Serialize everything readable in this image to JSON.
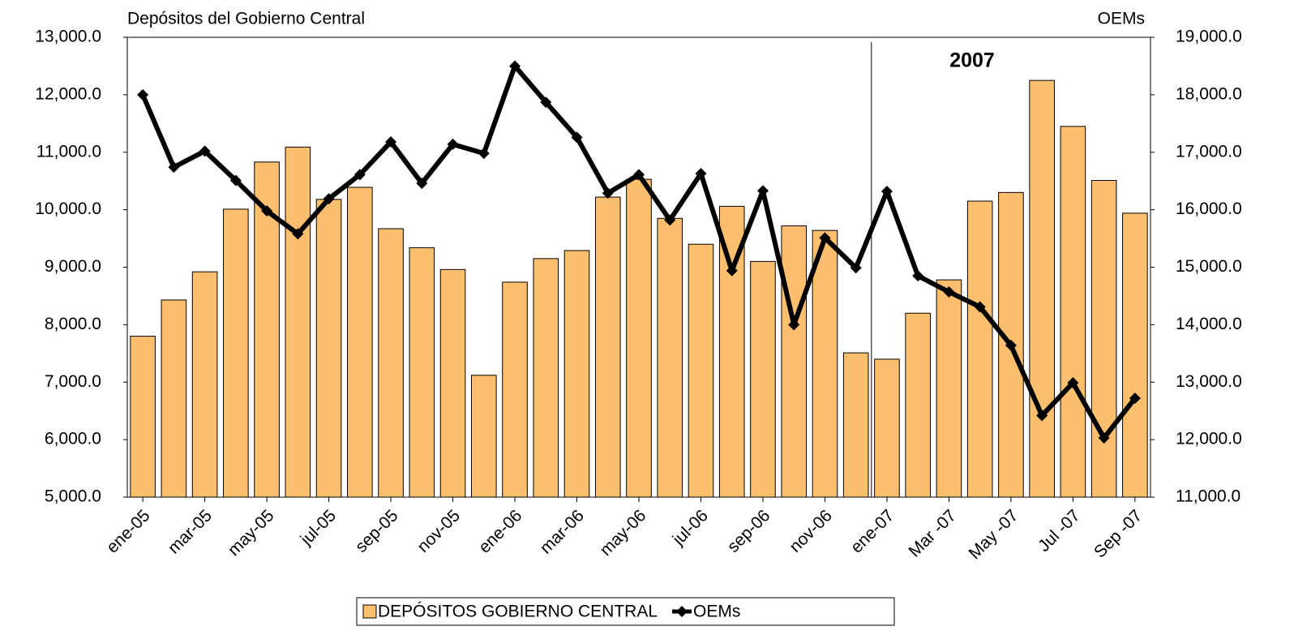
{
  "chart_data": {
    "type": "combo",
    "y_label": "Depósitos del Gobierno Central",
    "y2_label": "OEMs",
    "annotation": "2007",
    "annotation_color": "#ff0000",
    "categories": [
      "ene-05",
      null,
      "mar-05",
      null,
      "may-05",
      null,
      "jul-05",
      null,
      "sep-05",
      null,
      "nov-05",
      null,
      "ene-06",
      null,
      "mar-06",
      null,
      "may-06",
      null,
      "jul-06",
      null,
      "sep-06",
      null,
      "nov-06",
      null,
      "ene-07",
      null,
      "Mar -07",
      null,
      "May -07",
      null,
      "Jul -07",
      null,
      "Sep -07"
    ],
    "series": [
      {
        "name": "DEPÓSITOS GOBIERNO CENTRAL",
        "type": "bar",
        "color": "#fbbf6e",
        "axis": "y",
        "values": [
          7800,
          8430,
          8920,
          10010,
          10830,
          11090,
          10180,
          10390,
          9670,
          9340,
          8960,
          7120,
          8740,
          9150,
          9290,
          10220,
          10530,
          9850,
          9400,
          10060,
          9100,
          9720,
          9640,
          7510,
          7400,
          8200,
          8780,
          10150,
          10300,
          12250,
          11450,
          10510,
          9940
        ]
      },
      {
        "name": "OEMs",
        "type": "line",
        "color": "#000000",
        "axis": "y2",
        "values": [
          18000,
          16740,
          17020,
          16510,
          15980,
          15580,
          16190,
          16610,
          17180,
          16460,
          17140,
          16980,
          18500,
          17870,
          17260,
          16290,
          16610,
          15820,
          16630,
          14940,
          16330,
          14000,
          15510,
          14990,
          16320,
          14850,
          14570,
          14310,
          13640,
          12420,
          12990,
          12030,
          12720
        ]
      }
    ],
    "ylim": [
      5000,
      13000
    ],
    "yticks": [
      {
        "value": 5000,
        "label": "5,000.0"
      },
      {
        "value": 6000,
        "label": "6,000.0"
      },
      {
        "value": 7000,
        "label": "7,000.0"
      },
      {
        "value": 8000,
        "label": "8,000.0"
      },
      {
        "value": 9000,
        "label": "9,000.0"
      },
      {
        "value": 10000,
        "label": "10,000.0"
      },
      {
        "value": 11000,
        "label": "11,000.0"
      },
      {
        "value": 12000,
        "label": "12,000.0"
      },
      {
        "value": 13000,
        "label": "13,000.0"
      }
    ],
    "y2lim": [
      11000,
      19000
    ],
    "y2ticks": [
      {
        "value": 11000,
        "label": "11,000.0"
      },
      {
        "value": 12000,
        "label": "12,000.0"
      },
      {
        "value": 13000,
        "label": "13,000.0"
      },
      {
        "value": 14000,
        "label": "14,000.0"
      },
      {
        "value": 15000,
        "label": "15,000.0"
      },
      {
        "value": 16000,
        "label": "16,000.0"
      },
      {
        "value": 17000,
        "label": "17,000.0"
      },
      {
        "value": 18000,
        "label": "18,000.0"
      },
      {
        "value": 19000,
        "label": "19,000.0"
      }
    ],
    "grid": false,
    "legend": "bottom"
  }
}
